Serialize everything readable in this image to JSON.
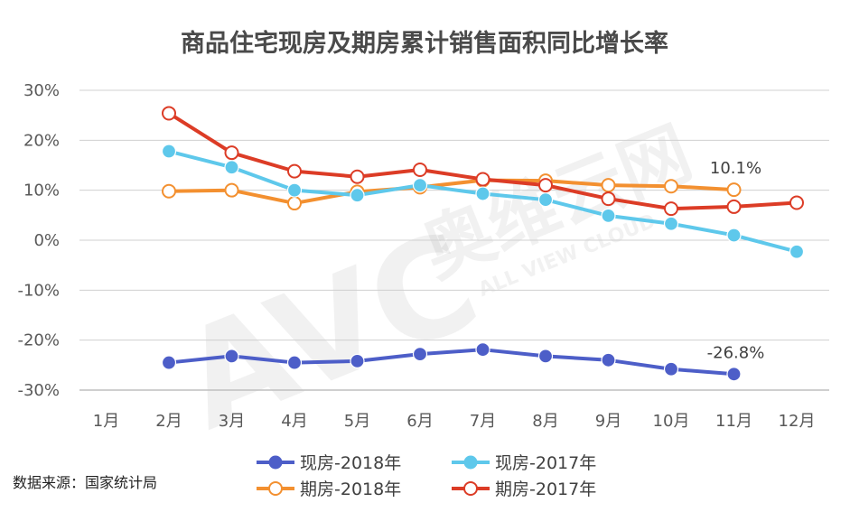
{
  "chart_data": {
    "type": "line",
    "title": "商品住宅现房及期房累计销售面积同比增长率",
    "categories": [
      "1月",
      "2月",
      "3月",
      "4月",
      "5月",
      "6月",
      "7月",
      "8月",
      "9月",
      "10月",
      "11月",
      "12月"
    ],
    "y_ticks": [
      "30%",
      "20%",
      "10%",
      "0%",
      "-10%",
      "-20%",
      "-30%"
    ],
    "ylim": [
      -30,
      30
    ],
    "grid": true,
    "legend_placement": "bottom",
    "series": [
      {
        "name": "现房-2018年",
        "color": "#4d5ec8",
        "marker": "filled",
        "values": [
          null,
          -24.5,
          -23.2,
          -24.5,
          -24.2,
          -22.8,
          -21.9,
          -23.2,
          -24.0,
          -25.8,
          -26.8,
          null
        ]
      },
      {
        "name": "现房-2017年",
        "color": "#5ec8eb",
        "marker": "filled",
        "values": [
          null,
          17.8,
          14.6,
          10.0,
          9.0,
          11.0,
          9.3,
          8.1,
          4.9,
          3.3,
          1.0,
          -2.3
        ]
      },
      {
        "name": "期房-2018年",
        "color": "#f39030",
        "marker": "hollow",
        "values": [
          null,
          9.8,
          10.0,
          7.4,
          9.7,
          10.6,
          12.0,
          11.9,
          11.0,
          10.8,
          10.1,
          null
        ]
      },
      {
        "name": "期房-2017年",
        "color": "#dc3c26",
        "marker": "hollow",
        "values": [
          null,
          25.4,
          17.5,
          13.8,
          12.7,
          14.1,
          12.2,
          11.0,
          8.3,
          6.3,
          6.7,
          7.5
        ]
      }
    ],
    "annotations": [
      {
        "text": "10.1%",
        "series_index": 2,
        "point_index": 10
      },
      {
        "text": "-26.8%",
        "series_index": 0,
        "point_index": 10
      }
    ]
  },
  "source": "数据来源：国家统计局",
  "watermark": {
    "text": "AVC",
    "cn": "奥维云网",
    "en": "ALL VIEW CLOUD"
  }
}
